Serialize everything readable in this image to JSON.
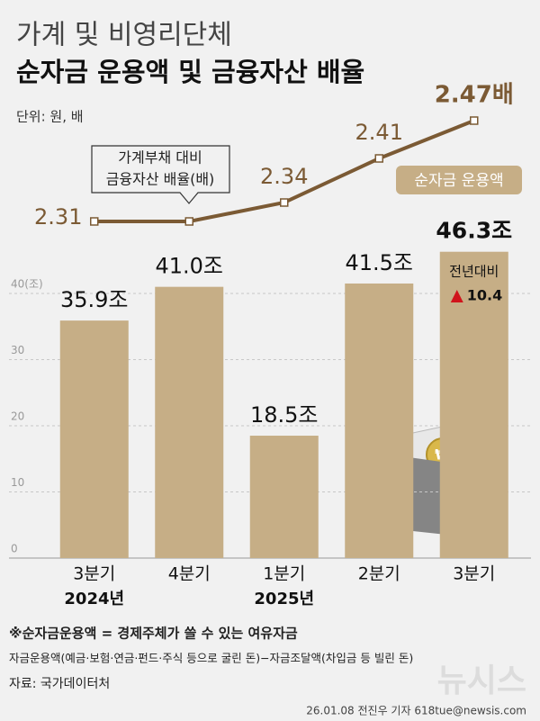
{
  "chart_data": {
    "type": "bar",
    "title": "가계 및 비영리단체",
    "subtitle": "순자금 운용액 및 금융자산 배율",
    "unit": "단위: 원, 배",
    "categories": [
      "3분기",
      "4분기",
      "1분기",
      "2분기",
      "3분기"
    ],
    "year_labels": [
      "2024년",
      null,
      "2025년",
      null,
      null
    ],
    "ylim": [
      0,
      60
    ],
    "yticks": [
      0,
      10,
      20,
      30,
      {
        "value": 40,
        "label": "40(조)"
      }
    ],
    "grid": true,
    "y2lim": [
      2.29,
      2.49
    ],
    "series": [
      {
        "name": "순자금 운용액",
        "type": "bar",
        "color": "#c6ae86",
        "values": [
          35.9,
          41.0,
          18.5,
          41.5,
          46.3
        ],
        "value_labels": [
          "35.9조",
          "41.0조",
          "18.5조",
          "41.5조",
          "46.3조"
        ]
      },
      {
        "name": "가계부채 대비 금융자산 배율(배)",
        "type": "line",
        "axis": "y2",
        "color": "#7b5a34",
        "values": [
          2.31,
          2.31,
          2.34,
          2.41,
          2.47
        ],
        "value_labels": [
          "2.31",
          null,
          "2.34",
          "2.41",
          "2.47배"
        ]
      }
    ],
    "callout": [
      "가계부채 대비",
      "금융자산 배율(배)"
    ],
    "change": {
      "label": "전년대비",
      "value": 10.4,
      "color": "#d0141c"
    },
    "notes": [
      "※순자금운용액 = 경제주체가 쓸 수 있는 여유자금",
      "자금운용액(예금·보험·연금·펀드·주식 등으로 굴린 돈)−자금조달액(차입금 등 빌린 돈)"
    ],
    "source": "자료: 국가데이터처",
    "credit": "26.01.08 전진우 기자 618tue@newsis.com",
    "logo": "뉴시스"
  }
}
